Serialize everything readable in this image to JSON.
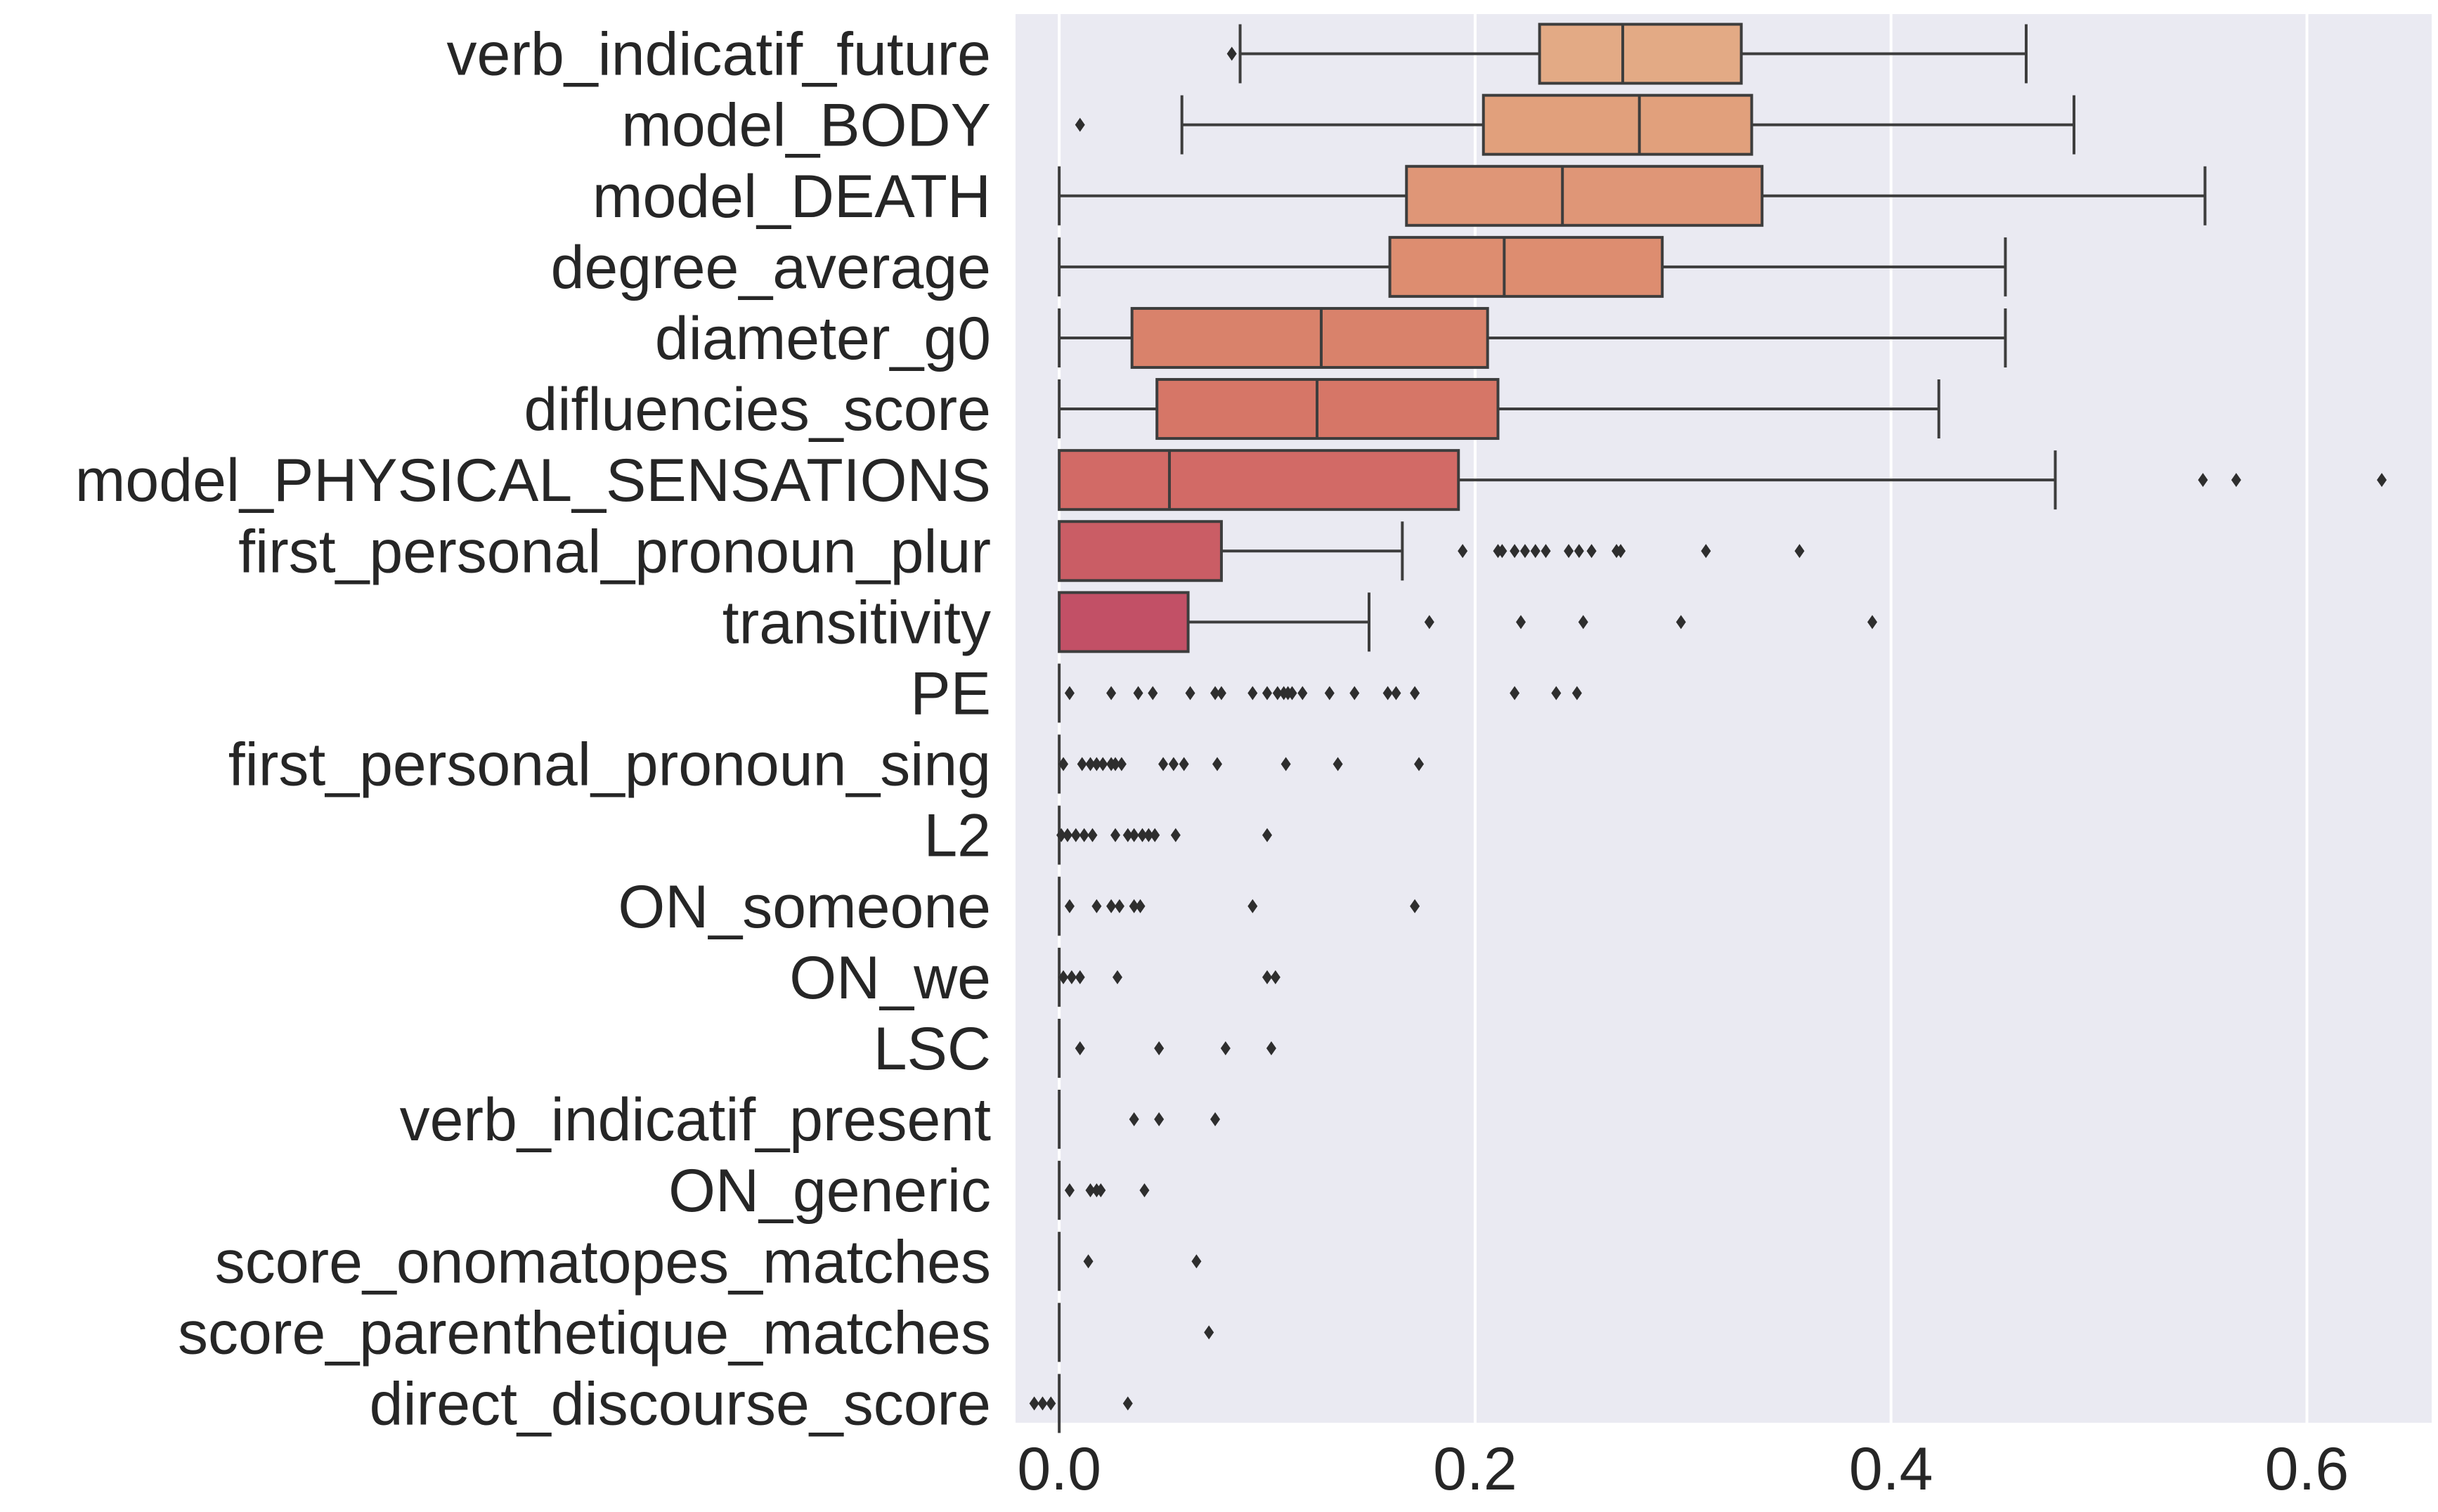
{
  "chart_data": {
    "type": "boxplot",
    "orientation": "horizontal",
    "title": "",
    "xlabel": "",
    "ylabel": "",
    "xlim": [
      -0.021,
      0.66
    ],
    "xticks": [
      0.0,
      0.2,
      0.4,
      0.6
    ],
    "xtick_labels": [
      "0.0",
      "0.2",
      "0.4",
      "0.6"
    ],
    "grid": "vertical",
    "palette": [
      "#e3aa85",
      "#e1a07c",
      "#df9677",
      "#dd8d70",
      "#d9826b",
      "#d67667",
      "#d26a66",
      "#ca5d65",
      "#c25066"
    ],
    "categories": [
      {
        "name": "verb_indicatif_future",
        "whislo": 0.087,
        "q1": 0.231,
        "med": 0.271,
        "q3": 0.328,
        "whishi": 0.465,
        "fliers": [
          0.083
        ]
      },
      {
        "name": "model_BODY",
        "whislo": 0.059,
        "q1": 0.204,
        "med": 0.279,
        "q3": 0.333,
        "whishi": 0.488,
        "fliers": [
          0.01
        ]
      },
      {
        "name": "model_DEATH",
        "whislo": 0.0,
        "q1": 0.167,
        "med": 0.242,
        "q3": 0.338,
        "whishi": 0.551,
        "fliers": []
      },
      {
        "name": "degree_average",
        "whislo": 0.0,
        "q1": 0.159,
        "med": 0.214,
        "q3": 0.29,
        "whishi": 0.455,
        "fliers": []
      },
      {
        "name": "diameter_g0",
        "whislo": 0.0,
        "q1": 0.035,
        "med": 0.126,
        "q3": 0.206,
        "whishi": 0.455,
        "fliers": []
      },
      {
        "name": "difluencies_score",
        "whislo": 0.0,
        "q1": 0.047,
        "med": 0.124,
        "q3": 0.211,
        "whishi": 0.423,
        "fliers": []
      },
      {
        "name": "model_PHYSICAL_SENSATIONS",
        "whislo": 0.0,
        "q1": 0.0,
        "med": 0.053,
        "q3": 0.192,
        "whishi": 0.479,
        "fliers": [
          0.55,
          0.566,
          0.636
        ]
      },
      {
        "name": "first_personal_pronoun_plur",
        "whislo": 0.0,
        "q1": 0.0,
        "med": 0.0,
        "q3": 0.078,
        "whishi": 0.165,
        "fliers": [
          0.194,
          0.211,
          0.213,
          0.219,
          0.224,
          0.229,
          0.234,
          0.245,
          0.25,
          0.256,
          0.268,
          0.27,
          0.311,
          0.356
        ]
      },
      {
        "name": "transitivity",
        "whislo": 0.0,
        "q1": 0.0,
        "med": 0.0,
        "q3": 0.062,
        "whishi": 0.149,
        "fliers": [
          0.178,
          0.222,
          0.252,
          0.299,
          0.391
        ]
      },
      {
        "name": "PE",
        "whislo": 0.0,
        "q1": 0.0,
        "med": 0.0,
        "q3": 0.0,
        "whishi": 0.0,
        "fliers": [
          0.005,
          0.025,
          0.038,
          0.045,
          0.063,
          0.075,
          0.078,
          0.093,
          0.1,
          0.105,
          0.108,
          0.11,
          0.112,
          0.117,
          0.13,
          0.142,
          0.158,
          0.162,
          0.171,
          0.219,
          0.239,
          0.249
        ]
      },
      {
        "name": "first_personal_pronoun_sing",
        "whislo": 0.0,
        "q1": 0.0,
        "med": 0.0,
        "q3": 0.0,
        "whishi": 0.0,
        "fliers": [
          0.002,
          0.011,
          0.015,
          0.018,
          0.021,
          0.025,
          0.027,
          0.03,
          0.05,
          0.055,
          0.06,
          0.076,
          0.109,
          0.134,
          0.173
        ]
      },
      {
        "name": "L2",
        "whislo": 0.0,
        "q1": 0.0,
        "med": 0.0,
        "q3": 0.0,
        "whishi": 0.0,
        "fliers": [
          0.001,
          0.004,
          0.008,
          0.012,
          0.016,
          0.027,
          0.033,
          0.036,
          0.04,
          0.043,
          0.046,
          0.056,
          0.1
        ]
      },
      {
        "name": "ON_someone",
        "whislo": 0.0,
        "q1": 0.0,
        "med": 0.0,
        "q3": 0.0,
        "whishi": 0.0,
        "fliers": [
          0.005,
          0.018,
          0.025,
          0.029,
          0.036,
          0.039,
          0.093,
          0.171
        ]
      },
      {
        "name": "ON_we",
        "whislo": 0.0,
        "q1": 0.0,
        "med": 0.0,
        "q3": 0.0,
        "whishi": 0.0,
        "fliers": [
          0.002,
          0.006,
          0.01,
          0.028,
          0.1,
          0.104
        ]
      },
      {
        "name": "LSC",
        "whislo": 0.0,
        "q1": 0.0,
        "med": 0.0,
        "q3": 0.0,
        "whishi": 0.0,
        "fliers": [
          0.01,
          0.048,
          0.08,
          0.102
        ]
      },
      {
        "name": "verb_indicatif_present",
        "whislo": 0.0,
        "q1": 0.0,
        "med": 0.0,
        "q3": 0.0,
        "whishi": 0.0,
        "fliers": [
          0.036,
          0.048,
          0.075
        ]
      },
      {
        "name": "ON_generic",
        "whislo": 0.0,
        "q1": 0.0,
        "med": 0.0,
        "q3": 0.0,
        "whishi": 0.0,
        "fliers": [
          0.005,
          0.015,
          0.018,
          0.02,
          0.041
        ]
      },
      {
        "name": "score_onomatopes_matches",
        "whislo": 0.0,
        "q1": 0.0,
        "med": 0.0,
        "q3": 0.0,
        "whishi": 0.0,
        "fliers": [
          0.014,
          0.066
        ]
      },
      {
        "name": "score_parenthetique_matches",
        "whislo": 0.0,
        "q1": 0.0,
        "med": 0.0,
        "q3": 0.0,
        "whishi": 0.0,
        "fliers": [
          0.072
        ]
      },
      {
        "name": "direct_discourse_score",
        "whislo": 0.0,
        "q1": 0.0,
        "med": 0.0,
        "q3": 0.0,
        "whishi": 0.0,
        "fliers": [
          -0.012,
          -0.008,
          -0.004,
          0.033
        ]
      }
    ]
  }
}
